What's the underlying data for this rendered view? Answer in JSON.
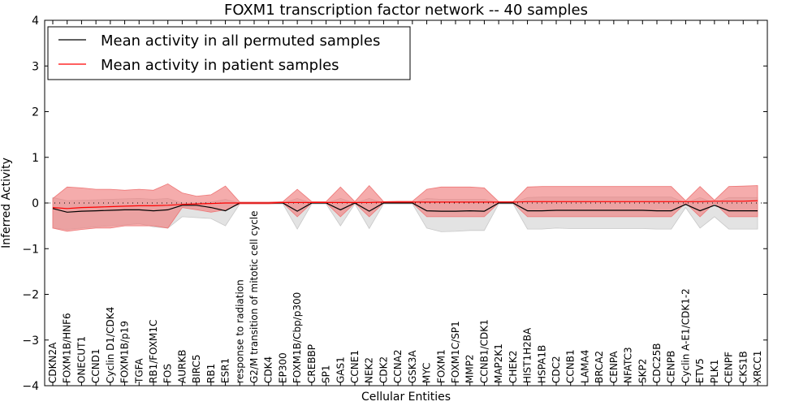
{
  "chart_data": {
    "type": "line",
    "title": "FOXM1 transcription factor network -- 40 samples",
    "xlabel": "Cellular Entities",
    "ylabel": "Inferred Activity",
    "ylim": [
      -4,
      4
    ],
    "yticks": [
      "4",
      "3",
      "2",
      "1",
      "0",
      "−1",
      "−2",
      "−3",
      "−4"
    ],
    "ytick_values": [
      4,
      3,
      2,
      1,
      0,
      -1,
      -2,
      -3,
      -4
    ],
    "categories": [
      "CDKN2A",
      "FOXM1B/HNF6",
      "ONECUT1",
      "CCND1",
      "Cyclin D1/CDK4",
      "FOXM1B/p19",
      "TGFA",
      "RB1/FOXM1C",
      "FOS",
      "AURKB",
      "BIRC5",
      "RB1",
      "ESR1",
      "response to radiation",
      "G2/M transition of mitotic cell cycle",
      "CDK4",
      "EP300",
      "FOXM1B/Cbp/p300",
      "CREBBP",
      "SP1",
      "GAS1",
      "CCNE1",
      "NEK2",
      "CDK2",
      "CCNA2",
      "GSK3A",
      "MYC",
      "FOXM1",
      "FOXM1C/SP1",
      "MMP2",
      "CCNB1/CDK1",
      "MAP2K1",
      "CHEK2",
      "HIST1H2BA",
      "HSPA1B",
      "CDC2",
      "CCNB1",
      "LAMA4",
      "BRCA2",
      "CENPA",
      "NFATC3",
      "SKP2",
      "CDC25B",
      "CENPB",
      "Cyclin A-E1/CDK1-2",
      "ETV5",
      "PLK1",
      "CENPF",
      "CKS1B",
      "XRCC1"
    ],
    "legend_position": "top-left",
    "series": [
      {
        "name": "Mean activity in all permuted samples",
        "color": "#000000",
        "values": [
          -0.12,
          -0.2,
          -0.18,
          -0.17,
          -0.16,
          -0.15,
          -0.15,
          -0.17,
          -0.15,
          -0.05,
          -0.05,
          -0.1,
          -0.17,
          0.0,
          0.0,
          0.0,
          0.0,
          -0.18,
          0.0,
          0.0,
          -0.15,
          0.0,
          -0.18,
          0.0,
          0.0,
          0.0,
          -0.17,
          -0.18,
          -0.18,
          -0.17,
          -0.18,
          0.0,
          0.0,
          -0.17,
          -0.17,
          -0.16,
          -0.16,
          -0.16,
          -0.16,
          -0.16,
          -0.16,
          -0.16,
          -0.17,
          -0.17,
          -0.03,
          -0.17,
          -0.05,
          -0.17,
          -0.17,
          -0.17
        ],
        "lower": [
          -0.55,
          -0.58,
          -0.55,
          -0.52,
          -0.5,
          -0.48,
          -0.45,
          -0.52,
          -0.55,
          -0.3,
          -0.32,
          -0.34,
          -0.5,
          -0.02,
          -0.02,
          -0.02,
          -0.02,
          -0.57,
          -0.02,
          -0.02,
          -0.5,
          -0.02,
          -0.56,
          -0.02,
          -0.02,
          -0.02,
          -0.55,
          -0.63,
          -0.62,
          -0.6,
          -0.6,
          -0.02,
          -0.02,
          -0.57,
          -0.57,
          -0.55,
          -0.56,
          -0.56,
          -0.56,
          -0.56,
          -0.56,
          -0.56,
          -0.57,
          -0.57,
          -0.1,
          -0.55,
          -0.3,
          -0.57,
          -0.57,
          -0.57
        ],
        "upper": [
          0.12,
          0.05,
          0.06,
          0.07,
          0.08,
          0.09,
          0.1,
          0.08,
          0.1,
          0.0,
          0.0,
          0.02,
          0.08,
          0.0,
          0.0,
          0.0,
          0.0,
          0.1,
          0.0,
          0.0,
          0.1,
          0.0,
          0.1,
          0.0,
          0.0,
          0.0,
          0.1,
          0.08,
          0.08,
          0.08,
          0.08,
          0.0,
          0.0,
          0.12,
          0.13,
          0.13,
          0.13,
          0.13,
          0.13,
          0.13,
          0.13,
          0.13,
          0.13,
          0.13,
          0.0,
          0.12,
          0.0,
          0.12,
          0.12,
          0.12
        ]
      },
      {
        "name": "Mean activity in patient samples",
        "color": "#ff0000",
        "values": [
          -0.1,
          -0.12,
          -0.1,
          -0.09,
          -0.08,
          -0.07,
          -0.06,
          -0.06,
          -0.05,
          -0.03,
          -0.02,
          -0.01,
          0.0,
          0.0,
          0.0,
          0.0,
          0.01,
          0.01,
          0.01,
          0.01,
          0.01,
          0.01,
          0.01,
          0.02,
          0.02,
          0.02,
          0.02,
          0.02,
          0.02,
          0.02,
          0.02,
          0.02,
          0.02,
          0.03,
          0.03,
          0.03,
          0.03,
          0.03,
          0.03,
          0.03,
          0.03,
          0.03,
          0.03,
          0.03,
          0.03,
          0.03,
          0.04,
          0.04,
          0.04,
          0.05
        ],
        "lower": [
          -0.55,
          -0.62,
          -0.58,
          -0.55,
          -0.55,
          -0.5,
          -0.5,
          -0.5,
          -0.55,
          -0.1,
          -0.15,
          -0.2,
          -0.15,
          -0.02,
          -0.02,
          -0.02,
          0.0,
          -0.3,
          0.0,
          0.0,
          -0.3,
          0.0,
          -0.3,
          0.0,
          0.0,
          0.0,
          -0.3,
          -0.3,
          -0.3,
          -0.3,
          -0.3,
          0.0,
          0.0,
          -0.3,
          -0.3,
          -0.3,
          -0.3,
          -0.3,
          -0.3,
          -0.3,
          -0.3,
          -0.3,
          -0.3,
          -0.3,
          0.0,
          -0.3,
          0.0,
          -0.3,
          -0.3,
          -0.3
        ],
        "upper": [
          0.1,
          0.35,
          0.33,
          0.3,
          0.3,
          0.28,
          0.3,
          0.28,
          0.42,
          0.22,
          0.15,
          0.18,
          0.37,
          0.02,
          0.02,
          0.02,
          0.03,
          0.3,
          0.03,
          0.03,
          0.35,
          0.03,
          0.38,
          0.03,
          0.04,
          0.04,
          0.3,
          0.35,
          0.35,
          0.35,
          0.33,
          0.03,
          0.03,
          0.35,
          0.36,
          0.36,
          0.36,
          0.36,
          0.36,
          0.36,
          0.36,
          0.36,
          0.36,
          0.36,
          0.05,
          0.36,
          0.06,
          0.36,
          0.37,
          0.38
        ]
      }
    ]
  }
}
